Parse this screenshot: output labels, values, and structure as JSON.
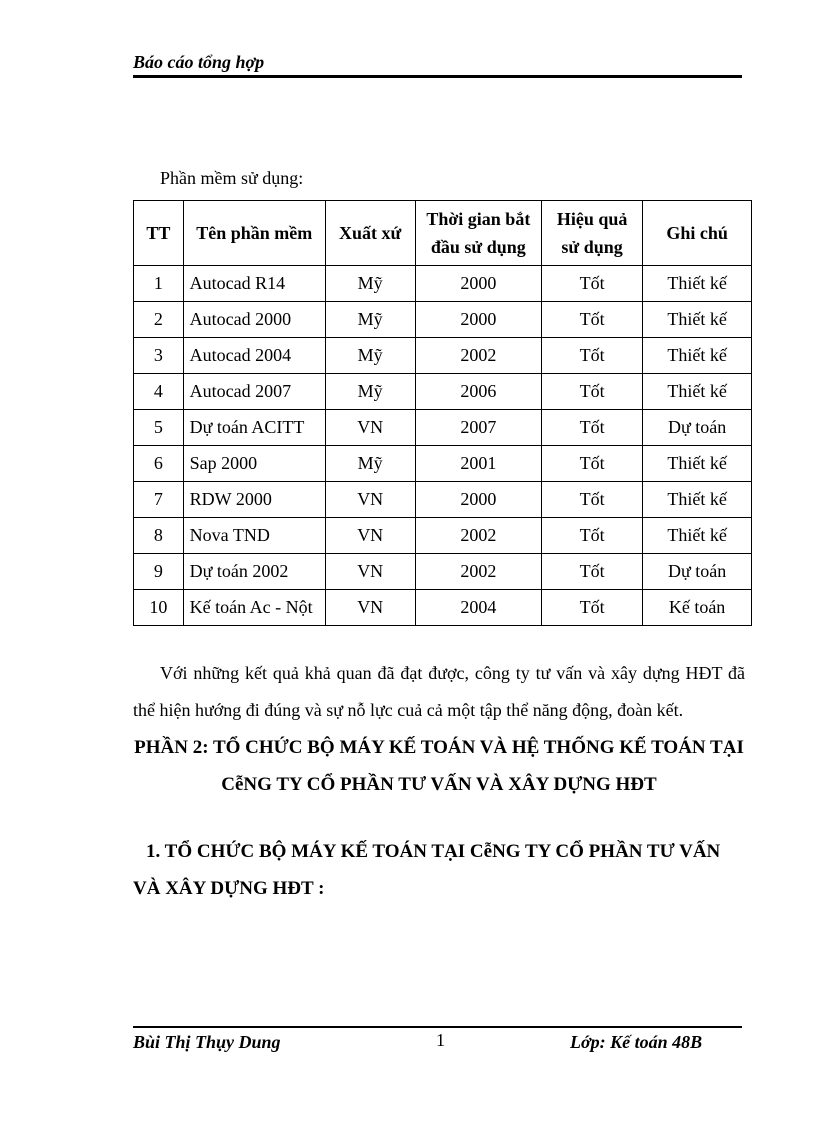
{
  "header": {
    "title": "Báo cáo tổng hợp"
  },
  "intro": "Phần mềm sử dụng:",
  "table": {
    "columns": [
      "TT",
      "Tên phần mềm",
      "Xuất xứ",
      "Thời gian bắt đầu sử dụng",
      "Hiệu quả sử dụng",
      "Ghi chú"
    ],
    "rows": [
      [
        "1",
        "Autocad R14",
        "Mỹ",
        "2000",
        "Tốt",
        "Thiết kế"
      ],
      [
        "2",
        "Autocad 2000",
        "Mỹ",
        "2000",
        "Tốt",
        "Thiết kế"
      ],
      [
        "3",
        "Autocad 2004",
        "Mỹ",
        "2002",
        "Tốt",
        "Thiết kế"
      ],
      [
        "4",
        "Autocad 2007",
        "Mỹ",
        "2006",
        "Tốt",
        "Thiết kế"
      ],
      [
        "5",
        "Dự toán ACITT",
        "VN",
        "2007",
        "Tốt",
        "Dự toán"
      ],
      [
        "6",
        "Sap 2000",
        "Mỹ",
        "2001",
        "Tốt",
        "Thiết kế"
      ],
      [
        "7",
        "RDW 2000",
        "VN",
        "2000",
        "Tốt",
        "Thiết kế"
      ],
      [
        "8",
        "Nova TND",
        "VN",
        "2002",
        "Tốt",
        "Thiết kế"
      ],
      [
        "9",
        "Dự toán 2002",
        "VN",
        "2002",
        "Tốt",
        "Dự toán"
      ],
      [
        "10",
        "Kế toán Ac - Nột",
        "VN",
        "2004",
        "Tốt",
        "Kế toán"
      ]
    ]
  },
  "paragraph": "Với những kết quả khả quan đã đạt được, công ty tư vấn và xây dựng HĐT đã thể hiện hướng đi đúng và sự nỗ lực cuả cả một tập thể năng động, đoàn kết.",
  "section_title": "PHẦN 2: TỔ CHỨC BỘ MÁY KẾ TOÁN VÀ HỆ THỐNG KẾ TOÁN TẠI CễNG TY CỔ PHẦN TƯ VẤN VÀ XÂY DỰNG HĐT",
  "subsection_title": "1. TỔ CHỨC BỘ MÁY KẾ TOÁN TẠI CễNG TY CỔ PHẦN TƯ VẤN VÀ XÂY DỰNG HĐT :",
  "footer": {
    "author": "Bùi Thị Thụy Dung",
    "page": "1",
    "class": "Lớp: Kế toán 48B"
  }
}
